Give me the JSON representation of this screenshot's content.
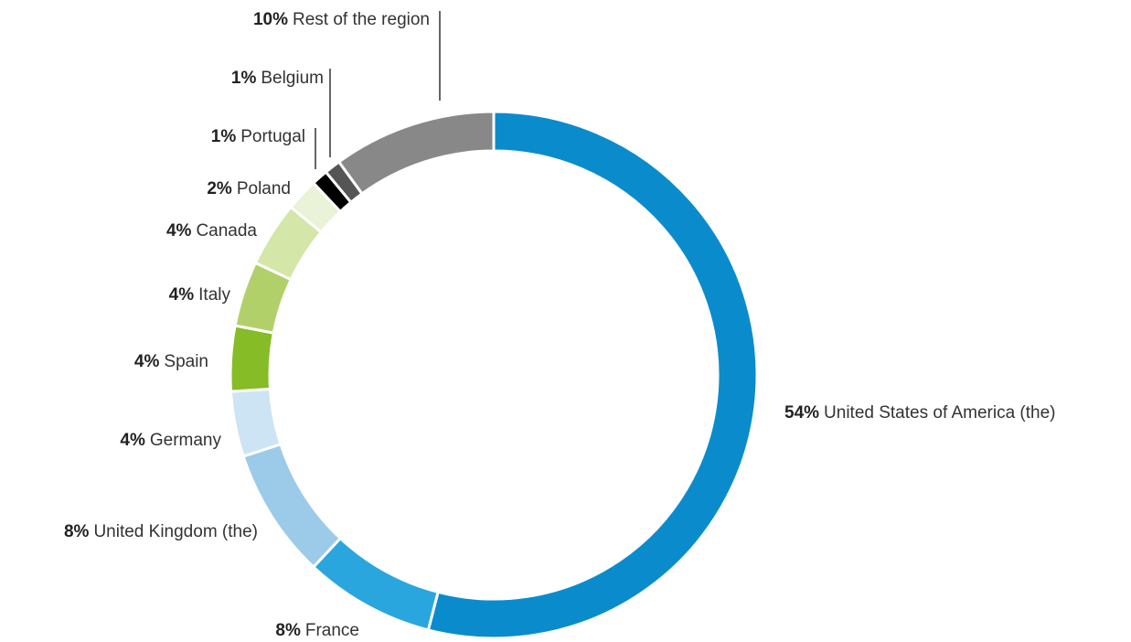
{
  "chart_data": {
    "type": "donut",
    "categories": [
      "United States of America (the)",
      "France",
      "United Kingdom (the)",
      "Germany",
      "Spain",
      "Italy",
      "Canada",
      "Poland",
      "Portugal",
      "Belgium",
      "Rest of the region"
    ],
    "values": [
      54,
      8,
      8,
      4,
      4,
      4,
      4,
      2,
      1,
      1,
      10
    ],
    "value_labels": [
      "54%",
      "8%",
      "8%",
      "4%",
      "4%",
      "4%",
      "4%",
      "2%",
      "1%",
      "1%",
      "10%"
    ],
    "colors": [
      "#0a8ccc",
      "#2aa6de",
      "#9ccbea",
      "#cde4f4",
      "#86bc25",
      "#b2d06a",
      "#d4e6a8",
      "#eaf2d8",
      "#000000",
      "#555555",
      "#888888"
    ]
  }
}
